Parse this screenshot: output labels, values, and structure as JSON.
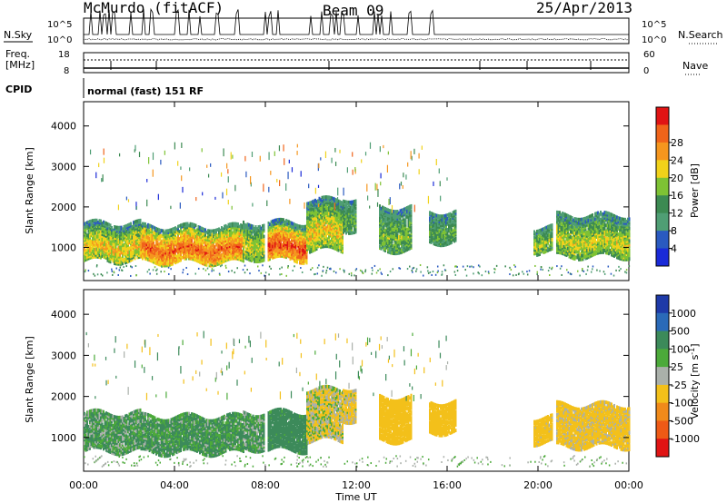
{
  "header": {
    "station": "McMurdo (fitACF)",
    "beam": "Beam 09",
    "date": "25/Apr/2013"
  },
  "status_panels": {
    "nsky_label": "N.Sky",
    "nsearch_label": "N.Search",
    "noise_ticks": [
      "10^5",
      "10^0"
    ],
    "freq_label_line1": "Freq.",
    "freq_label_line2": "[MHz]",
    "freq_ticks": [
      "18",
      "8"
    ],
    "nave_label": "Nave",
    "nave_ticks": [
      "60",
      "0"
    ],
    "cpid_label": "CPID",
    "cpid_value": "normal (fast) 151 RF"
  },
  "time_axis": {
    "label": "Time UT",
    "ticks": [
      "00:00",
      "04:00",
      "08:00",
      "12:00",
      "16:00",
      "20:00",
      "00:00"
    ]
  },
  "chart_data": [
    {
      "type": "heatmap",
      "panel": "power",
      "x_unit": "hours UT",
      "xlim": [
        0,
        24
      ],
      "ylabel": "Slant Range [km]",
      "ylim": [
        180,
        4600
      ],
      "yticks": [
        1000,
        2000,
        3000,
        4000
      ],
      "colorbar": {
        "label": "Power [dB]",
        "ticks": [
          "4",
          "8",
          "12",
          "16",
          "20",
          "24",
          "28"
        ],
        "colors": [
          "#1a2ad8",
          "#2a5ac0",
          "#4f9e74",
          "#3c8a52",
          "#7ec234",
          "#f1d21a",
          "#f5961e",
          "#f0641a",
          "#e01414"
        ]
      },
      "echo_regions": [
        {
          "t0": 0.0,
          "t1": 2.5,
          "r0": 640,
          "r1": 1560,
          "level": 0.62
        },
        {
          "t0": 2.5,
          "t1": 7.0,
          "r0": 600,
          "r1": 1500,
          "level": 0.8
        },
        {
          "t0": 7.0,
          "t1": 7.9,
          "r0": 700,
          "r1": 1600,
          "level": 0.55
        },
        {
          "t0": 8.1,
          "t1": 9.8,
          "r0": 660,
          "r1": 1600,
          "level": 0.85
        },
        {
          "t0": 9.8,
          "t1": 11.4,
          "r0": 900,
          "r1": 2150,
          "level": 0.6
        },
        {
          "t0": 11.4,
          "t1": 12.0,
          "r0": 1400,
          "r1": 2200,
          "level": 0.4
        },
        {
          "t0": 13.0,
          "t1": 14.4,
          "r0": 900,
          "r1": 1950,
          "level": 0.45
        },
        {
          "t0": 15.2,
          "t1": 16.4,
          "r0": 1100,
          "r1": 1850,
          "level": 0.4
        },
        {
          "t0": 19.8,
          "t1": 20.6,
          "r0": 850,
          "r1": 1450,
          "level": 0.5
        },
        {
          "t0": 20.8,
          "t1": 24.0,
          "r0": 750,
          "r1": 1750,
          "level": 0.55
        }
      ]
    },
    {
      "type": "heatmap",
      "panel": "velocity",
      "x_unit": "hours UT",
      "xlim": [
        0,
        24
      ],
      "ylabel": "Slant Range [km]",
      "ylim": [
        180,
        4600
      ],
      "yticks": [
        1000,
        2000,
        3000,
        4000
      ],
      "colorbar": {
        "label": "Velocity [m s^-1]",
        "ticks": [
          "1000",
          "500",
          "100",
          "25",
          "-25",
          "-100",
          "-500",
          "-1000"
        ],
        "colors": [
          "#1e3aa8",
          "#2a6ab8",
          "#3c8a5a",
          "#4caa3a",
          "#aab0aa",
          "#f3c01a",
          "#f08a1a",
          "#ee5a16",
          "#e01414"
        ]
      },
      "echo_regions": [
        {
          "t0": 0.0,
          "t1": 2.5,
          "r0": 640,
          "r1": 1560,
          "vel": 60
        },
        {
          "t0": 2.5,
          "t1": 7.0,
          "r0": 600,
          "r1": 1500,
          "vel": 80
        },
        {
          "t0": 7.0,
          "t1": 7.9,
          "r0": 700,
          "r1": 1600,
          "vel": 50
        },
        {
          "t0": 8.1,
          "t1": 9.8,
          "r0": 660,
          "r1": 1600,
          "vel": 150
        },
        {
          "t0": 9.8,
          "t1": 11.4,
          "r0": 900,
          "r1": 2150,
          "vel": -60
        },
        {
          "t0": 11.4,
          "t1": 12.0,
          "r0": 1400,
          "r1": 2200,
          "vel": -90
        },
        {
          "t0": 13.0,
          "t1": 14.4,
          "r0": 900,
          "r1": 1950,
          "vel": -180
        },
        {
          "t0": 15.2,
          "t1": 16.4,
          "r0": 1100,
          "r1": 1850,
          "vel": -200
        },
        {
          "t0": 19.8,
          "t1": 20.6,
          "r0": 850,
          "r1": 1450,
          "vel": -150
        },
        {
          "t0": 20.8,
          "t1": 24.0,
          "r0": 750,
          "r1": 1750,
          "vel": -120
        }
      ]
    }
  ]
}
